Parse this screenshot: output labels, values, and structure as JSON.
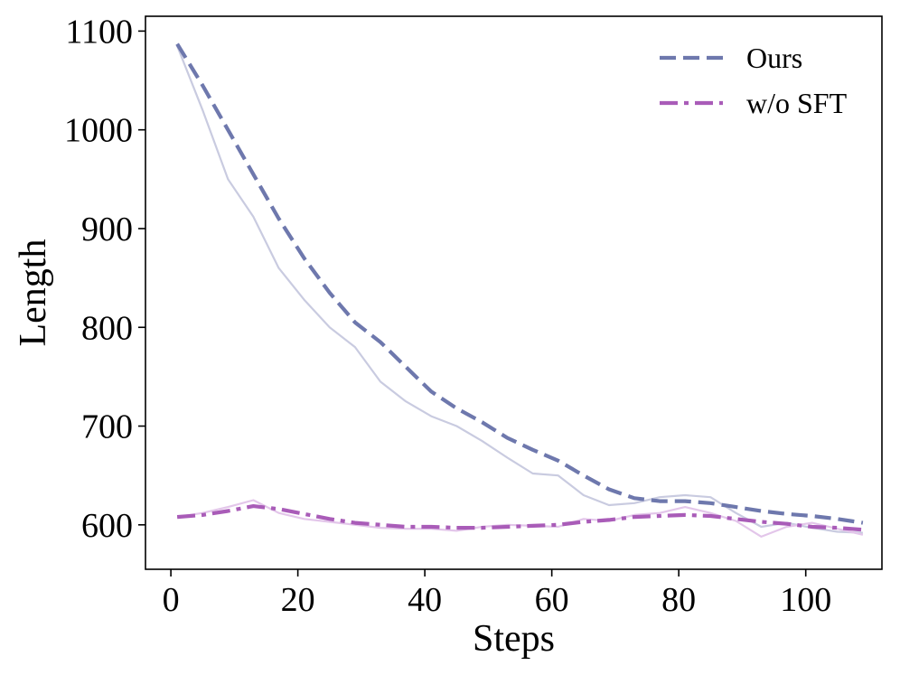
{
  "chart_data": {
    "type": "line",
    "title": "",
    "xlabel": "Steps",
    "ylabel": "Length",
    "xlim": [
      -4,
      112
    ],
    "ylim": [
      555,
      1115
    ],
    "xticks": [
      0,
      20,
      40,
      60,
      80,
      100
    ],
    "yticks": [
      600,
      700,
      800,
      900,
      1000,
      1100
    ],
    "grid": false,
    "legend_position": "top-right",
    "x": [
      1,
      5,
      9,
      13,
      17,
      21,
      25,
      29,
      33,
      37,
      41,
      45,
      49,
      53,
      57,
      61,
      65,
      69,
      73,
      77,
      81,
      85,
      89,
      93,
      97,
      101,
      105,
      109
    ],
    "series": [
      {
        "name": "Ours",
        "style": "dashed",
        "color": "#6e78ad",
        "raw_color": "#c9cbe0",
        "smoothed": [
          1087,
          1045,
          1000,
          955,
          910,
          870,
          835,
          805,
          785,
          760,
          735,
          718,
          704,
          688,
          676,
          665,
          650,
          636,
          627,
          624,
          624,
          622,
          618,
          614,
          611,
          609,
          606,
          602
        ],
        "raw": [
          1085,
          1020,
          950,
          912,
          860,
          828,
          800,
          780,
          745,
          725,
          710,
          700,
          685,
          668,
          652,
          650,
          630,
          620,
          622,
          628,
          630,
          628,
          612,
          598,
          602,
          597,
          593,
          592
        ]
      },
      {
        "name": "w/o SFT",
        "style": "dashdot",
        "color": "#a95cb8",
        "raw_color": "#e3c6ea",
        "smoothed": [
          608,
          610,
          614,
          619,
          616,
          611,
          606,
          602,
          600,
          598,
          598,
          597,
          597,
          598,
          599,
          600,
          603,
          605,
          608,
          609,
          610,
          609,
          606,
          603,
          601,
          598,
          597,
          595
        ],
        "raw": [
          608,
          612,
          618,
          625,
          612,
          606,
          603,
          600,
          597,
          596,
          596,
          594,
          598,
          600,
          599,
          598,
          606,
          604,
          610,
          612,
          618,
          612,
          604,
          588,
          598,
          602,
          596,
          590
        ]
      }
    ]
  }
}
